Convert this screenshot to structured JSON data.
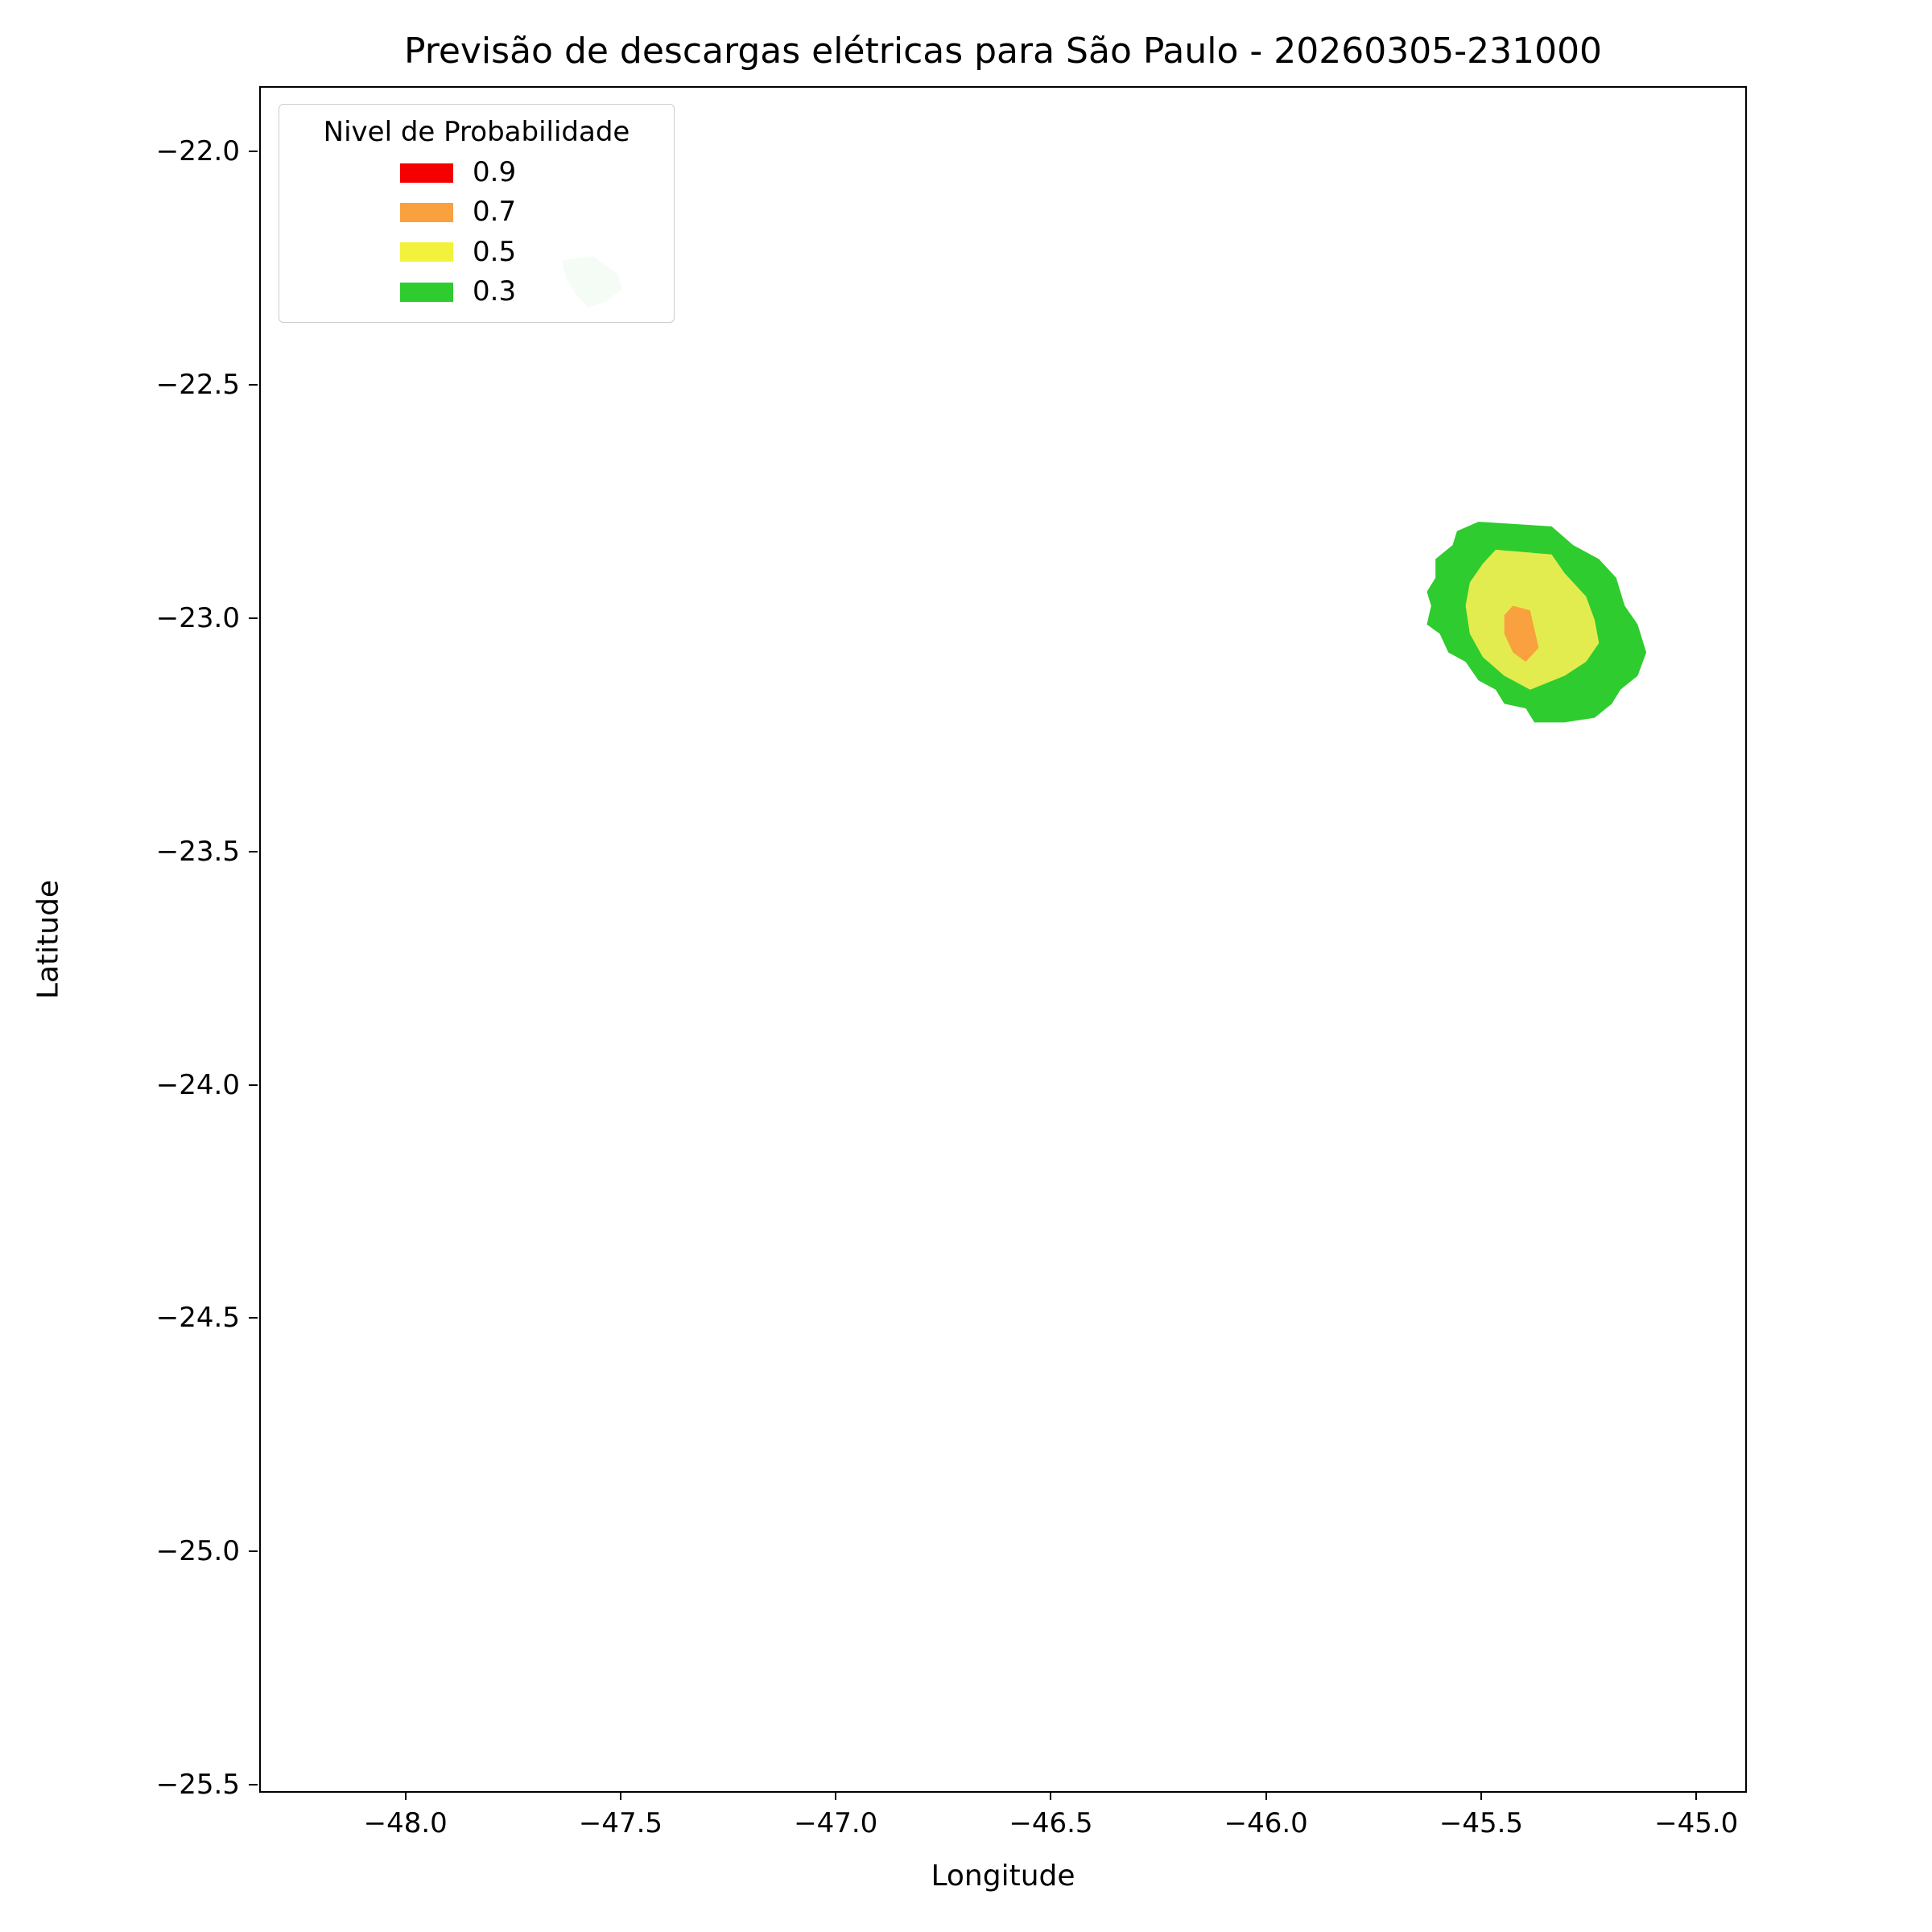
{
  "chart_data": {
    "type": "contour",
    "title": "Previsão de descargas elétricas para São Paulo - 20260305-231000",
    "xlabel": "Longitude",
    "ylabel": "Latitude",
    "xlim": [
      -48.34,
      -44.89
    ],
    "ylim": [
      -25.51,
      -21.86
    ],
    "grid": false,
    "x_ticks": [
      -48.0,
      -47.5,
      -47.0,
      -46.5,
      -46.0,
      -45.5,
      -45.0
    ],
    "x_tick_labels": [
      "−48.0",
      "−47.5",
      "−47.0",
      "−46.5",
      "−46.0",
      "−45.5",
      "−45.0"
    ],
    "y_ticks": [
      -22.0,
      -22.5,
      -23.0,
      -23.5,
      -24.0,
      -24.5,
      -25.0,
      -25.5
    ],
    "y_tick_labels": [
      "−22.0",
      "−22.5",
      "−23.0",
      "−23.5",
      "−24.0",
      "−24.5",
      "−25.0",
      "−25.5"
    ],
    "legend": {
      "title": "Nivel de Probabilidade",
      "position": "upper left",
      "items": [
        {
          "label": "0.9",
          "color": "#f40000"
        },
        {
          "label": "0.7",
          "color": "#f9a03f"
        },
        {
          "label": "0.5",
          "color": "#f2f23c"
        },
        {
          "label": "0.3",
          "color": "#2fcc2f"
        }
      ]
    },
    "regions": [
      {
        "name": "faint-patch",
        "level": null,
        "color": "#cdeacd",
        "opacity": 1,
        "points": [
          [
            -47.64,
            -22.23
          ],
          [
            -47.57,
            -22.22
          ],
          [
            -47.51,
            -22.26
          ],
          [
            -47.5,
            -22.29
          ],
          [
            -47.54,
            -22.32
          ],
          [
            -47.58,
            -22.33
          ],
          [
            -47.61,
            -22.3
          ],
          [
            -47.63,
            -22.27
          ]
        ]
      },
      {
        "name": "prob-0.3",
        "level": 0.3,
        "color": "#2fcc2f",
        "opacity": 1,
        "points": [
          [
            -45.51,
            -22.79
          ],
          [
            -45.34,
            -22.8
          ],
          [
            -45.29,
            -22.84
          ],
          [
            -45.23,
            -22.87
          ],
          [
            -45.19,
            -22.91
          ],
          [
            -45.17,
            -22.97
          ],
          [
            -45.14,
            -23.01
          ],
          [
            -45.12,
            -23.07
          ],
          [
            -45.14,
            -23.12
          ],
          [
            -45.18,
            -23.15
          ],
          [
            -45.2,
            -23.18
          ],
          [
            -45.24,
            -23.21
          ],
          [
            -45.31,
            -23.22
          ],
          [
            -45.38,
            -23.22
          ],
          [
            -45.4,
            -23.19
          ],
          [
            -45.45,
            -23.18
          ],
          [
            -45.47,
            -23.15
          ],
          [
            -45.51,
            -23.13
          ],
          [
            -45.54,
            -23.09
          ],
          [
            -45.58,
            -23.07
          ],
          [
            -45.6,
            -23.03
          ],
          [
            -45.63,
            -23.01
          ],
          [
            -45.62,
            -22.97
          ],
          [
            -45.63,
            -22.94
          ],
          [
            -45.61,
            -22.91
          ],
          [
            -45.61,
            -22.87
          ],
          [
            -45.57,
            -22.84
          ],
          [
            -45.56,
            -22.81
          ]
        ]
      },
      {
        "name": "prob-0.5",
        "level": 0.5,
        "color": "#e3ec4f",
        "opacity": 1,
        "points": [
          [
            -45.47,
            -22.85
          ],
          [
            -45.34,
            -22.86
          ],
          [
            -45.31,
            -22.9
          ],
          [
            -45.26,
            -22.95
          ],
          [
            -45.24,
            -23.0
          ],
          [
            -45.23,
            -23.05
          ],
          [
            -45.26,
            -23.09
          ],
          [
            -45.31,
            -23.12
          ],
          [
            -45.39,
            -23.15
          ],
          [
            -45.45,
            -23.12
          ],
          [
            -45.5,
            -23.08
          ],
          [
            -45.53,
            -23.03
          ],
          [
            -45.54,
            -22.97
          ],
          [
            -45.53,
            -22.92
          ],
          [
            -45.5,
            -22.88
          ]
        ]
      },
      {
        "name": "prob-0.7",
        "level": 0.7,
        "color": "#f9a03f",
        "opacity": 1,
        "points": [
          [
            -45.43,
            -22.97
          ],
          [
            -45.39,
            -22.98
          ],
          [
            -45.38,
            -23.02
          ],
          [
            -45.37,
            -23.06
          ],
          [
            -45.4,
            -23.09
          ],
          [
            -45.43,
            -23.07
          ],
          [
            -45.45,
            -23.03
          ],
          [
            -45.45,
            -22.99
          ]
        ]
      }
    ]
  }
}
